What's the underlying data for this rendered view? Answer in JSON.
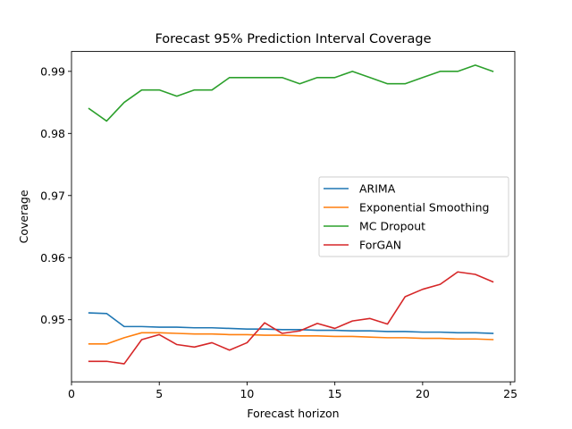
{
  "chart_data": {
    "type": "line",
    "title": "Forecast 95% Prediction Interval Coverage",
    "xlabel": "Forecast horizon",
    "ylabel": "Coverage",
    "xlim": [
      0.0,
      25.25
    ],
    "ylim": [
      0.94,
      0.9932
    ],
    "x_ticks": [
      0,
      5,
      10,
      15,
      20,
      25
    ],
    "y_ticks": [
      0.95,
      0.96,
      0.97,
      0.98,
      0.99
    ],
    "x_tick_labels": [
      "0",
      "5",
      "10",
      "15",
      "20",
      "25"
    ],
    "y_tick_labels": [
      "0.95",
      "0.96",
      "0.97",
      "0.98",
      "0.99"
    ],
    "grid": false,
    "legend_position": "center-right",
    "x": [
      1,
      2,
      3,
      4,
      5,
      6,
      7,
      8,
      9,
      10,
      11,
      12,
      13,
      14,
      15,
      16,
      17,
      18,
      19,
      20,
      21,
      22,
      23,
      24
    ],
    "series": [
      {
        "name": "ARIMA",
        "color": "#1f77b4",
        "values": [
          0.9511,
          0.951,
          0.9489,
          0.9489,
          0.9488,
          0.9488,
          0.9487,
          0.9487,
          0.9486,
          0.9485,
          0.9485,
          0.9484,
          0.9484,
          0.9483,
          0.9483,
          0.9482,
          0.9482,
          0.9481,
          0.9481,
          0.948,
          0.948,
          0.9479,
          0.9479,
          0.9478
        ]
      },
      {
        "name": "Exponential Smoothing",
        "color": "#ff7f0e",
        "values": [
          0.9461,
          0.9461,
          0.9471,
          0.9479,
          0.9479,
          0.9478,
          0.9477,
          0.9477,
          0.9476,
          0.9476,
          0.9475,
          0.9475,
          0.9474,
          0.9474,
          0.9473,
          0.9473,
          0.9472,
          0.9471,
          0.9471,
          0.947,
          0.947,
          0.9469,
          0.9469,
          0.9468
        ]
      },
      {
        "name": "MC Dropout",
        "color": "#2ca02c",
        "values": [
          0.984,
          0.982,
          0.985,
          0.987,
          0.987,
          0.986,
          0.987,
          0.987,
          0.989,
          0.989,
          0.989,
          0.989,
          0.988,
          0.989,
          0.989,
          0.99,
          0.989,
          0.988,
          0.988,
          0.989,
          0.99,
          0.99,
          0.991,
          0.99
        ]
      },
      {
        "name": "ForGAN",
        "color": "#d62728",
        "values": [
          0.9433,
          0.9433,
          0.9429,
          0.9468,
          0.9476,
          0.946,
          0.9456,
          0.9463,
          0.9451,
          0.9463,
          0.9495,
          0.9478,
          0.9482,
          0.9494,
          0.9486,
          0.9498,
          0.9502,
          0.9493,
          0.9537,
          0.9549,
          0.9557,
          0.9577,
          0.9573,
          0.9561
        ]
      }
    ]
  }
}
